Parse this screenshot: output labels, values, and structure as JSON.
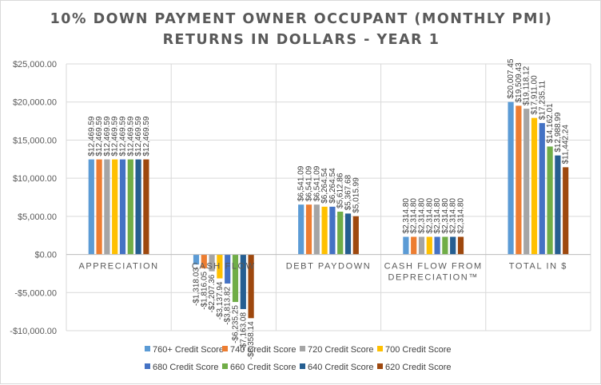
{
  "chart_data": {
    "type": "bar",
    "title": [
      "10% DOWN PAYMENT OWNER OCCUPANT (MONTHLY PMI)",
      "RETURNS IN DOLLARS - YEAR 1"
    ],
    "categories": [
      [
        "APPRECIATION"
      ],
      [
        "CASH FLOW"
      ],
      [
        "DEBT PAYDOWN"
      ],
      [
        "CASH FLOW FROM",
        "DEPRECIATION™"
      ],
      [
        "TOTAL IN $"
      ]
    ],
    "ylim": [
      -10000,
      25000
    ],
    "yticks": [
      -10000,
      -5000,
      0,
      5000,
      10000,
      15000,
      20000,
      25000
    ],
    "ytick_labels": [
      "-$10,000.00",
      "-$5,000.00",
      "$0.00",
      "$5,000.00",
      "$10,000.00",
      "$15,000.00",
      "$20,000.00",
      "$25,000.00"
    ],
    "legend_position": "bottom",
    "series": [
      {
        "name": "760+ Credit Score",
        "color": "#5b9bd5",
        "values": [
          12469.59,
          -1318.03,
          6541.09,
          2314.8,
          20007.45
        ],
        "labels": [
          "$12,469.59",
          "-$1,318.03",
          "$6,541.09",
          "$2,314.80",
          "$20,007.45"
        ]
      },
      {
        "name": "740 Credit Score",
        "color": "#ed7d31",
        "values": [
          12469.59,
          -1816.05,
          6541.09,
          2314.8,
          19509.43
        ],
        "labels": [
          "$12,469.59",
          "-$1,816.05",
          "$6,541.09",
          "$2,314.80",
          "$19,509.43"
        ]
      },
      {
        "name": "720 Credit Score",
        "color": "#a5a5a5",
        "values": [
          12469.59,
          -2207.36,
          6541.09,
          2314.8,
          19118.12
        ],
        "labels": [
          "$12,469.59",
          "-$2,207.36",
          "$6,541.09",
          "$2,314.80",
          "$19,118.12"
        ]
      },
      {
        "name": "700 Credit Score",
        "color": "#ffc000",
        "values": [
          12469.59,
          -3137.94,
          6264.54,
          2314.8,
          17911.0
        ],
        "labels": [
          "$12,469.59",
          "-$3,137.94",
          "$6,264.54",
          "$2,314.80",
          "$17,911.00"
        ]
      },
      {
        "name": "680 Credit Score",
        "color": "#4472c4",
        "values": [
          12469.59,
          -3813.82,
          6264.54,
          2314.8,
          17235.11
        ],
        "labels": [
          "$12,469.59",
          "-$3,813.82",
          "$6,264.54",
          "$2,314.80",
          "$17,235.11"
        ]
      },
      {
        "name": "660 Credit Score",
        "color": "#70ad47",
        "values": [
          12469.59,
          -6235.25,
          5612.86,
          2314.8,
          14162.01
        ],
        "labels": [
          "$12,469.59",
          "-$6,235.25",
          "$5,612.86",
          "$2,314.80",
          "$14,162.01"
        ]
      },
      {
        "name": "640 Credit Score",
        "color": "#255e91",
        "values": [
          12469.59,
          -7163.08,
          5367.68,
          2314.8,
          12988.99
        ],
        "labels": [
          "$12,469.59",
          "-$7,163.08",
          "$5,367.68",
          "$2,314.80",
          "$12,988.99"
        ]
      },
      {
        "name": "620 Credit Score",
        "color": "#9e480e",
        "values": [
          12469.59,
          -8358.14,
          5015.99,
          2314.8,
          11442.24
        ],
        "labels": [
          "$12,469.59",
          "-$8,358.14",
          "$5,015.99",
          "$2,314.80",
          "$11,442.24"
        ]
      }
    ]
  }
}
